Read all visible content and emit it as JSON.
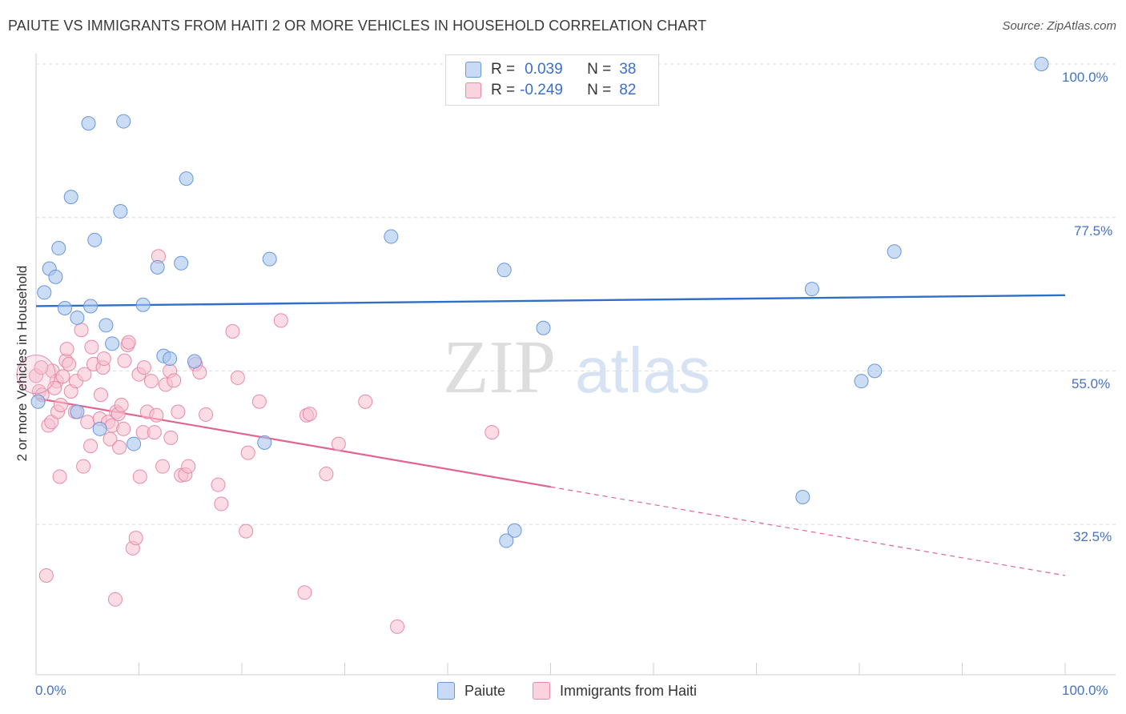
{
  "header": {
    "title": "PAIUTE VS IMMIGRANTS FROM HAITI 2 OR MORE VEHICLES IN HOUSEHOLD CORRELATION CHART",
    "source": "Source: ZipAtlas.com"
  },
  "watermark": {
    "part1": "ZIP",
    "part2": "atlas"
  },
  "legend": {
    "rows": [
      {
        "r_label": "R =",
        "r_value": "0.039",
        "n_label": "N =",
        "n_value": "38",
        "color": "#a9c4ef",
        "stroke": "#6a96dd"
      },
      {
        "r_label": "R =",
        "r_value": "-0.249",
        "n_label": "N =",
        "n_value": "82",
        "color": "#f7bfd0",
        "stroke": "#e88aa8"
      }
    ]
  },
  "bottom_legend": {
    "series1": "Paiute",
    "series2": "Immigrants from Haiti"
  },
  "axes": {
    "ylabel": "2 or more Vehicles in Household",
    "x_min_label": "0.0%",
    "x_max_label": "100.0%",
    "y_tick_labels": [
      "100.0%",
      "77.5%",
      "55.0%",
      "32.5%"
    ]
  },
  "chart_data": {
    "type": "scatter",
    "title": "PAIUTE VS IMMIGRANTS FROM HAITI 2 OR MORE VEHICLES IN HOUSEHOLD CORRELATION CHART",
    "xlabel": "",
    "ylabel": "2 or more Vehicles in Household",
    "xlim": [
      0,
      100
    ],
    "ylim": [
      12,
      100
    ],
    "y_ticks": [
      100.0,
      77.5,
      55.0,
      32.5
    ],
    "grid": "horizontal dashed",
    "legend_position": "top-center",
    "series": [
      {
        "name": "Paiute",
        "color": "#a9c4ef",
        "stroke": "#6a96dd",
        "line_color": "#2f6fc6",
        "R": 0.039,
        "N": 38,
        "trend": {
          "x": [
            0,
            100
          ],
          "y": [
            64.5,
            66.1
          ]
        },
        "points": [
          [
            0.2,
            50.5
          ],
          [
            0.8,
            66.5
          ],
          [
            1.3,
            70.0
          ],
          [
            1.9,
            68.8
          ],
          [
            2.2,
            73.0
          ],
          [
            2.8,
            64.2
          ],
          [
            3.4,
            80.5
          ],
          [
            4.0,
            62.8
          ],
          [
            4.0,
            49.0
          ],
          [
            5.1,
            91.3
          ],
          [
            5.3,
            64.5
          ],
          [
            5.7,
            74.2
          ],
          [
            6.2,
            46.5
          ],
          [
            6.8,
            61.7
          ],
          [
            7.4,
            59.0
          ],
          [
            8.2,
            78.4
          ],
          [
            8.5,
            91.6
          ],
          [
            9.5,
            44.3
          ],
          [
            10.4,
            64.7
          ],
          [
            11.8,
            70.2
          ],
          [
            12.4,
            57.2
          ],
          [
            13.0,
            56.8
          ],
          [
            14.1,
            70.8
          ],
          [
            14.6,
            83.2
          ],
          [
            15.4,
            56.4
          ],
          [
            22.7,
            71.4
          ],
          [
            22.2,
            44.5
          ],
          [
            34.5,
            74.7
          ],
          [
            45.5,
            69.8
          ],
          [
            45.7,
            30.1
          ],
          [
            46.5,
            31.6
          ],
          [
            49.3,
            61.3
          ],
          [
            75.4,
            67.0
          ],
          [
            74.5,
            36.5
          ],
          [
            80.2,
            53.5
          ],
          [
            81.5,
            55.0
          ],
          [
            83.4,
            72.5
          ],
          [
            97.7,
            100.0
          ]
        ]
      },
      {
        "name": "Immigrants from Haiti",
        "color": "#f7bfd0",
        "stroke": "#e88aa8",
        "line_color": "#e0668c",
        "R": -0.249,
        "N": 82,
        "trend_solid": {
          "x": [
            0,
            50
          ],
          "y": [
            51.0,
            38.0
          ]
        },
        "trend_dashed": {
          "x": [
            50,
            100
          ],
          "y": [
            38.0,
            25.0
          ]
        },
        "points": [
          [
            0.0,
            54.3
          ],
          [
            0.3,
            52.0
          ],
          [
            0.6,
            51.5
          ],
          [
            1.0,
            25.0
          ],
          [
            1.2,
            47.0
          ],
          [
            1.5,
            47.5
          ],
          [
            1.6,
            55.0
          ],
          [
            2.0,
            53.5
          ],
          [
            2.1,
            49.0
          ],
          [
            2.3,
            39.5
          ],
          [
            2.6,
            54.2
          ],
          [
            2.9,
            56.5
          ],
          [
            3.0,
            58.2
          ],
          [
            3.4,
            52.0
          ],
          [
            3.8,
            49.0
          ],
          [
            3.9,
            53.5
          ],
          [
            4.4,
            61.0
          ],
          [
            4.6,
            41.0
          ],
          [
            4.7,
            54.5
          ],
          [
            5.0,
            47.5
          ],
          [
            5.3,
            44.0
          ],
          [
            5.4,
            58.5
          ],
          [
            5.6,
            56.0
          ],
          [
            6.2,
            48.0
          ],
          [
            6.3,
            51.5
          ],
          [
            6.5,
            55.5
          ],
          [
            6.6,
            56.8
          ],
          [
            7.0,
            47.5
          ],
          [
            7.2,
            45.0
          ],
          [
            7.4,
            47.0
          ],
          [
            7.7,
            21.5
          ],
          [
            7.8,
            49.0
          ],
          [
            8.0,
            48.7
          ],
          [
            8.1,
            43.8
          ],
          [
            8.3,
            50.0
          ],
          [
            8.5,
            46.5
          ],
          [
            8.6,
            56.5
          ],
          [
            8.9,
            58.8
          ],
          [
            9.0,
            59.2
          ],
          [
            9.4,
            29.0
          ],
          [
            9.7,
            30.5
          ],
          [
            10.0,
            54.5
          ],
          [
            10.1,
            39.5
          ],
          [
            10.4,
            46.0
          ],
          [
            10.5,
            55.5
          ],
          [
            10.8,
            49.0
          ],
          [
            11.2,
            53.5
          ],
          [
            11.5,
            46.0
          ],
          [
            11.7,
            48.5
          ],
          [
            11.9,
            71.8
          ],
          [
            12.3,
            41.0
          ],
          [
            12.6,
            53.0
          ],
          [
            13.0,
            55.0
          ],
          [
            13.1,
            45.2
          ],
          [
            13.4,
            53.6
          ],
          [
            13.8,
            49.0
          ],
          [
            14.1,
            39.7
          ],
          [
            14.5,
            39.8
          ],
          [
            14.8,
            41.0
          ],
          [
            15.5,
            56.0
          ],
          [
            15.9,
            54.8
          ],
          [
            16.5,
            48.6
          ],
          [
            17.7,
            38.3
          ],
          [
            18.0,
            35.5
          ],
          [
            19.1,
            60.8
          ],
          [
            19.6,
            54.0
          ],
          [
            20.4,
            31.5
          ],
          [
            20.6,
            43.0
          ],
          [
            21.7,
            50.5
          ],
          [
            23.8,
            62.4
          ],
          [
            26.3,
            48.5
          ],
          [
            26.6,
            48.7
          ],
          [
            26.1,
            22.5
          ],
          [
            28.2,
            39.9
          ],
          [
            29.4,
            44.3
          ],
          [
            32.0,
            50.5
          ],
          [
            35.1,
            17.5
          ],
          [
            44.3,
            46.0
          ],
          [
            0.5,
            55.5
          ],
          [
            1.8,
            52.5
          ],
          [
            3.2,
            56.0
          ],
          [
            2.4,
            50.0
          ]
        ]
      }
    ]
  }
}
